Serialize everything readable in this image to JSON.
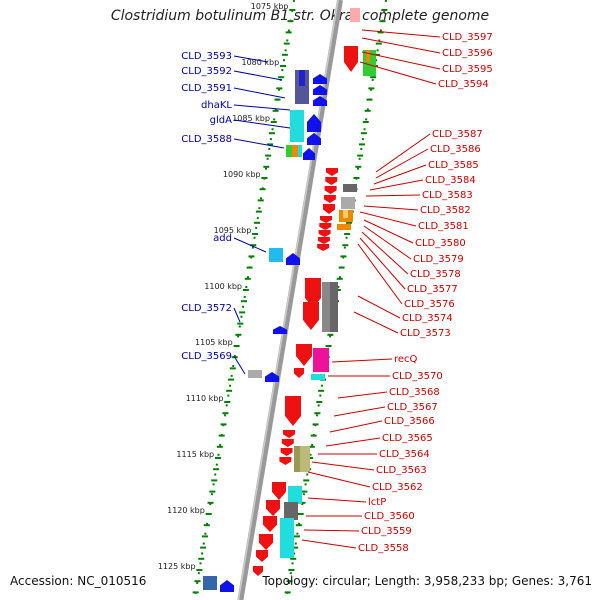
{
  "title": "Clostridium botulinum B1 str. Okra, complete genome",
  "footer": {
    "accession": "Accession: NC_010516",
    "summary": "Topology: circular; Length: 3,958,233 bp; Genes: 3,761"
  },
  "scale_labels": [
    "1075 kbp",
    "1080 kbp",
    "1085 kbp",
    "1090 kbp",
    "1095 kbp",
    "1100 kbp",
    "1105 kbp",
    "1110 kbp",
    "1115 kbp",
    "1120 kbp",
    "1125 kbp"
  ],
  "colors": {
    "left_label": "#0000aa",
    "right_label": "#cc0000",
    "backbone": "#999999",
    "scale": "#008000"
  },
  "left_labels": [
    "CLD_3593",
    "CLD_3592",
    "CLD_3591",
    "dhaKL",
    "gldA",
    "CLD_3588",
    "add",
    "CLD_3572",
    "CLD_3569"
  ],
  "right_labels": [
    "CLD_3597",
    "CLD_3596",
    "CLD_3595",
    "CLD_3594",
    "CLD_3587",
    "CLD_3586",
    "CLD_3585",
    "CLD_3584",
    "CLD_3583",
    "CLD_3582",
    "CLD_3581",
    "CLD_3580",
    "CLD_3579",
    "CLD_3578",
    "CLD_3577",
    "CLD_3576",
    "CLD_3574",
    "CLD_3573",
    "recQ",
    "CLD_3570",
    "CLD_3568",
    "CLD_3567",
    "CLD_3566",
    "CLD_3565",
    "CLD_3564",
    "CLD_3563",
    "CLD_3562",
    "lctP",
    "CLD_3560",
    "CLD_3559",
    "CLD_3558"
  ]
}
